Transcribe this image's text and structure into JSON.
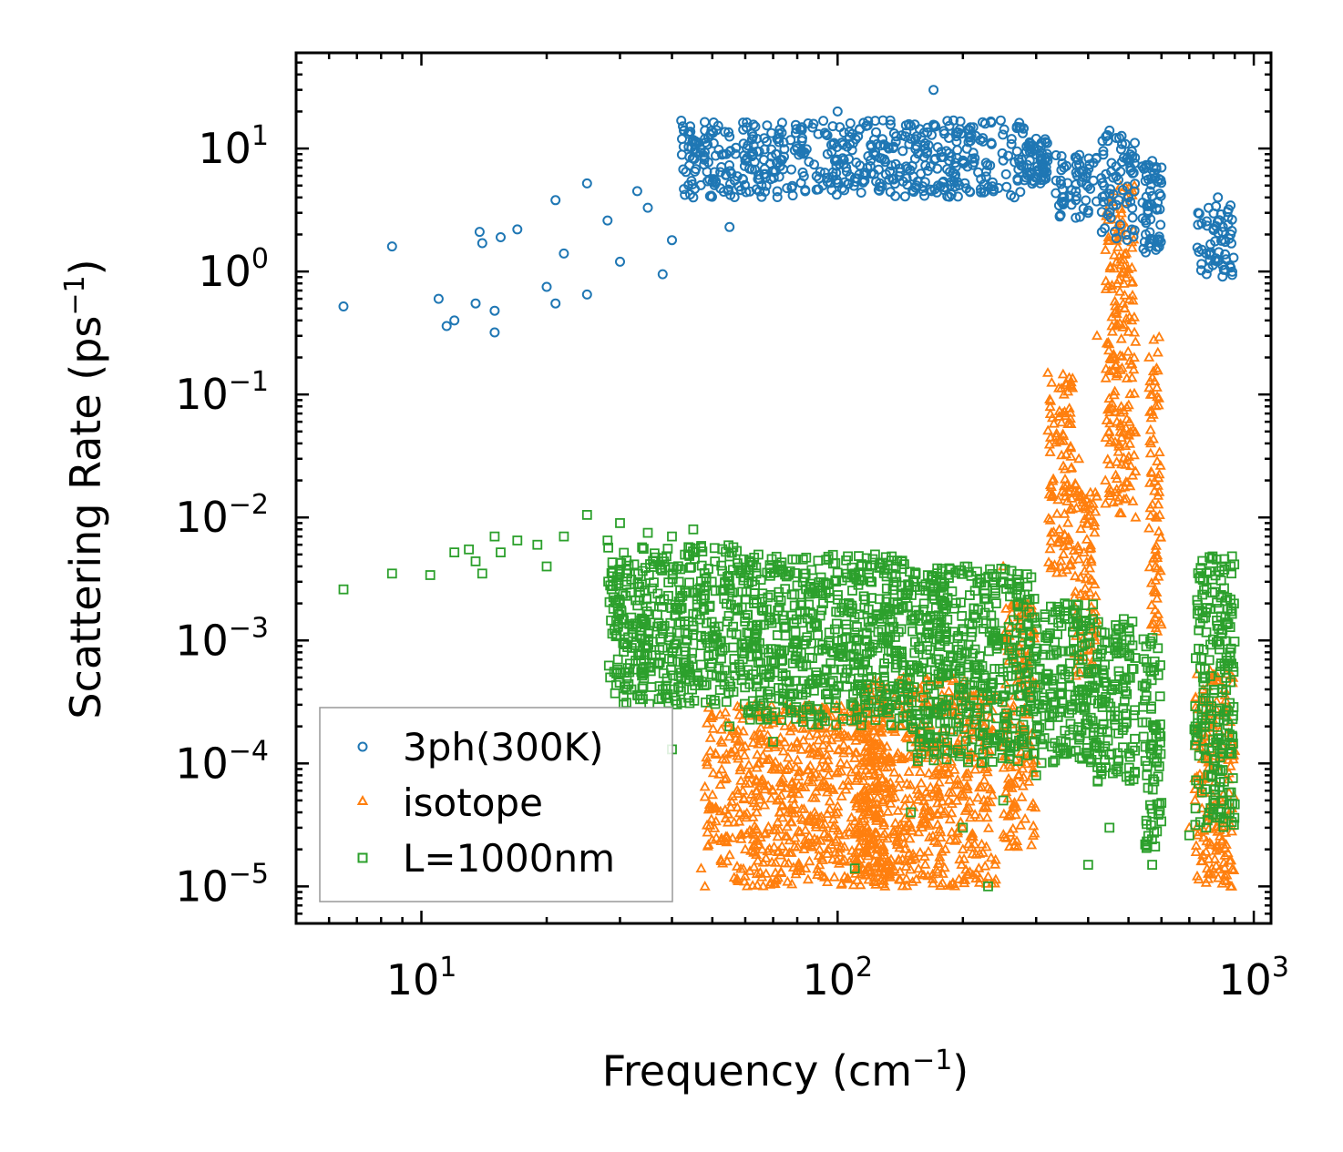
{
  "chart_data": {
    "type": "scatter",
    "xscale": "log",
    "yscale": "log",
    "xlabel": {
      "text": "Frequency (cm",
      "sup": "−1",
      "close": ")"
    },
    "ylabel": {
      "text": "Scattering Rate (ps",
      "sup": "−1",
      "close": ")"
    },
    "xlim": [
      5,
      1100
    ],
    "ylim": [
      5e-06,
      60
    ],
    "x_ticks": [
      {
        "value": 10,
        "base": "10",
        "exp": "1"
      },
      {
        "value": 100,
        "base": "10",
        "exp": "2"
      },
      {
        "value": 1000,
        "base": "10",
        "exp": "3"
      }
    ],
    "y_ticks": [
      {
        "value": 1e-05,
        "base": "10",
        "exp": "−5"
      },
      {
        "value": 0.0001,
        "base": "10",
        "exp": "−4"
      },
      {
        "value": 0.001,
        "base": "10",
        "exp": "−3"
      },
      {
        "value": 0.01,
        "base": "10",
        "exp": "−2"
      },
      {
        "value": 0.1,
        "base": "10",
        "exp": "−1"
      },
      {
        "value": 1,
        "base": "10",
        "exp": "0"
      },
      {
        "value": 10,
        "base": "10",
        "exp": "1"
      }
    ],
    "legend_position": "lower-left",
    "series": [
      {
        "name": "3ph(300K)",
        "marker": "circle",
        "color": "#1f77b4",
        "sample_points": [
          [
            6.5,
            0.52
          ],
          [
            8.5,
            1.6
          ],
          [
            11,
            0.6
          ],
          [
            11.5,
            0.36
          ],
          [
            12,
            0.4
          ],
          [
            13.5,
            0.55
          ],
          [
            13.8,
            2.1
          ],
          [
            14,
            1.7
          ],
          [
            15,
            0.32
          ],
          [
            15,
            0.48
          ],
          [
            15.5,
            1.9
          ],
          [
            17,
            2.2
          ],
          [
            20,
            0.75
          ],
          [
            21,
            0.55
          ],
          [
            21,
            3.8
          ],
          [
            22,
            1.4
          ],
          [
            25,
            0.65
          ],
          [
            25,
            5.2
          ],
          [
            28,
            2.6
          ],
          [
            30,
            1.2
          ],
          [
            33,
            4.5
          ],
          [
            35,
            3.3
          ],
          [
            38,
            0.95
          ],
          [
            40,
            1.8
          ],
          [
            45,
            4.0
          ],
          [
            48,
            12
          ],
          [
            55,
            2.3
          ],
          [
            60,
            8
          ],
          [
            80,
            10
          ],
          [
            100,
            20
          ],
          [
            120,
            8
          ],
          [
            150,
            12
          ],
          [
            170,
            30
          ],
          [
            200,
            8
          ],
          [
            250,
            8
          ],
          [
            300,
            12
          ],
          [
            350,
            7
          ],
          [
            400,
            3
          ],
          [
            450,
            14
          ],
          [
            500,
            4
          ],
          [
            550,
            2
          ],
          [
            600,
            7
          ],
          [
            750,
            1.5
          ],
          [
            820,
            4
          ],
          [
            880,
            2
          ]
        ],
        "bands": [
          {
            "xmin": 42,
            "xmax": 280,
            "ymin": 4,
            "ymax": 17
          },
          {
            "xmin": 280,
            "xmax": 320,
            "ymin": 5,
            "ymax": 12
          },
          {
            "xmin": 330,
            "xmax": 420,
            "ymin": 2.5,
            "ymax": 9
          },
          {
            "xmin": 430,
            "xmax": 520,
            "ymin": 1.8,
            "ymax": 13
          },
          {
            "xmin": 540,
            "xmax": 600,
            "ymin": 1.4,
            "ymax": 8
          },
          {
            "xmin": 730,
            "xmax": 900,
            "ymin": 0.9,
            "ymax": 3.5
          }
        ]
      },
      {
        "name": "isotope",
        "marker": "triangle",
        "color": "#ff7f0e",
        "sample_points": [
          [
            47,
            1.4e-05
          ],
          [
            48,
            1e-05
          ],
          [
            60,
            2e-05
          ],
          [
            70,
            6e-05
          ],
          [
            80,
            0.00015
          ],
          [
            90,
            0.0002
          ],
          [
            100,
            4e-05
          ],
          [
            130,
            1e-05
          ],
          [
            150,
            3e-05
          ],
          [
            200,
            2e-05
          ],
          [
            230,
            1.2e-05
          ],
          [
            250,
            0.004
          ],
          [
            280,
            0.002
          ],
          [
            320,
            0.15
          ],
          [
            350,
            0.1
          ],
          [
            380,
            0.03
          ],
          [
            420,
            0.3
          ],
          [
            440,
            0.02
          ],
          [
            470,
            4.5
          ],
          [
            490,
            0.5
          ],
          [
            520,
            0.01
          ],
          [
            560,
            0.2
          ],
          [
            580,
            0.004
          ],
          [
            700,
            3e-05
          ],
          [
            760,
            8e-05
          ],
          [
            850,
            0.0004
          ],
          [
            880,
            1e-05
          ]
        ],
        "bands": [
          {
            "xmin": 48,
            "xmax": 130,
            "ymin": 1e-05,
            "ymax": 0.0003
          },
          {
            "xmin": 110,
            "xmax": 240,
            "ymin": 1e-05,
            "ymax": 0.0005
          },
          {
            "xmin": 250,
            "xmax": 300,
            "ymin": 2e-05,
            "ymax": 0.002
          },
          {
            "xmin": 320,
            "xmax": 370,
            "ymin": 0.003,
            "ymax": 0.15
          },
          {
            "xmin": 370,
            "xmax": 420,
            "ymin": 0.0005,
            "ymax": 0.02
          },
          {
            "xmin": 440,
            "xmax": 520,
            "ymin": 0.01,
            "ymax": 5
          },
          {
            "xmin": 560,
            "xmax": 600,
            "ymin": 0.001,
            "ymax": 0.3
          },
          {
            "xmin": 720,
            "xmax": 900,
            "ymin": 1e-05,
            "ymax": 0.0006
          }
        ]
      },
      {
        "name": "L=1000nm",
        "marker": "square",
        "color": "#2ca02c",
        "sample_points": [
          [
            6.5,
            0.0026
          ],
          [
            8.5,
            0.0035
          ],
          [
            10.5,
            0.0034
          ],
          [
            12,
            0.0052
          ],
          [
            13,
            0.0055
          ],
          [
            13.5,
            0.0044
          ],
          [
            14,
            0.0035
          ],
          [
            15,
            0.007
          ],
          [
            15.5,
            0.0052
          ],
          [
            17,
            0.0065
          ],
          [
            19,
            0.006
          ],
          [
            20,
            0.004
          ],
          [
            22,
            0.007
          ],
          [
            25,
            0.0105
          ],
          [
            28,
            0.0065
          ],
          [
            30,
            0.009
          ],
          [
            35,
            0.0075
          ],
          [
            38,
            0.0004
          ],
          [
            40,
            0.00013
          ],
          [
            40,
            0.007
          ],
          [
            45,
            0.008
          ],
          [
            55,
            0.0002
          ],
          [
            70,
            0.00015
          ],
          [
            95,
            0.0048
          ],
          [
            110,
            1.4e-05
          ],
          [
            150,
            4e-05
          ],
          [
            200,
            3e-05
          ],
          [
            230,
            1e-05
          ],
          [
            250,
            5e-05
          ],
          [
            300,
            8e-05
          ],
          [
            400,
            1.5e-05
          ],
          [
            450,
            3e-05
          ],
          [
            570,
            1.5e-05
          ],
          [
            700,
            2.6e-05
          ],
          [
            800,
            5e-05
          ],
          [
            880,
            0.004
          ]
        ],
        "bands": [
          {
            "xmin": 28,
            "xmax": 60,
            "ymin": 0.0003,
            "ymax": 0.006
          },
          {
            "xmin": 60,
            "xmax": 150,
            "ymin": 0.0002,
            "ymax": 0.005
          },
          {
            "xmin": 150,
            "xmax": 300,
            "ymin": 0.0001,
            "ymax": 0.004
          },
          {
            "xmin": 300,
            "xmax": 420,
            "ymin": 0.0001,
            "ymax": 0.002
          },
          {
            "xmin": 420,
            "xmax": 520,
            "ymin": 7e-05,
            "ymax": 0.0015
          },
          {
            "xmin": 540,
            "xmax": 600,
            "ymin": 2e-05,
            "ymax": 0.0012
          },
          {
            "xmin": 720,
            "xmax": 900,
            "ymin": 3e-05,
            "ymax": 0.005
          }
        ]
      }
    ]
  }
}
